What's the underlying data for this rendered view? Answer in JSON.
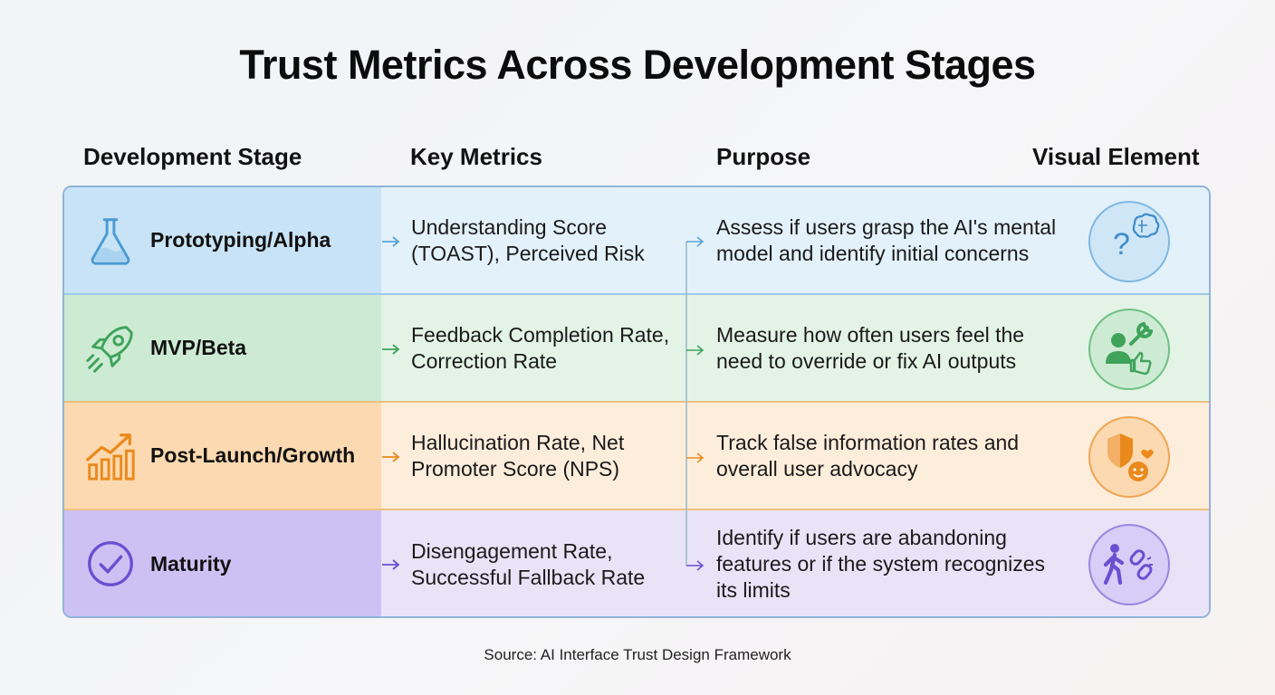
{
  "title": "Trust Metrics Across Development Stages",
  "columns": {
    "stage": "Development Stage",
    "metrics": "Key Metrics",
    "purpose": "Purpose",
    "visual": "Visual Element"
  },
  "rows": [
    {
      "stage": "Prototyping/Alpha",
      "stage_icon": "flask-icon",
      "metrics": "Understanding Score (TOAST), Perceived Risk",
      "purpose": "Assess if users grasp the AI's mental model and identify initial concerns",
      "visual_icon": "question-brain-icon",
      "accent": "#5aa4d6"
    },
    {
      "stage": "MVP/Beta",
      "stage_icon": "rocket-icon",
      "metrics": "Feedback Completion Rate, Correction Rate",
      "purpose": "Measure how often users feel the need to override or fix AI outputs",
      "visual_icon": "user-wrench-thumbsup-icon",
      "accent": "#3fa35a"
    },
    {
      "stage": "Post-Launch/Growth",
      "stage_icon": "growth-chart-icon",
      "metrics": "Hallucination Rate, Net Promoter Score (NPS)",
      "purpose": "Track false information rates and overall user advocacy",
      "visual_icon": "shield-smiley-icon",
      "accent": "#ea8a1c"
    },
    {
      "stage": "Maturity",
      "stage_icon": "check-circle-icon",
      "metrics": "Disengagement Rate, Successful Fallback Rate",
      "purpose": "Identify if users are abandoning features or if the system recognizes its limits",
      "visual_icon": "walker-broken-link-icon",
      "accent": "#6b4fd0"
    }
  ],
  "source": "Source: AI Interface Trust Design Framework"
}
